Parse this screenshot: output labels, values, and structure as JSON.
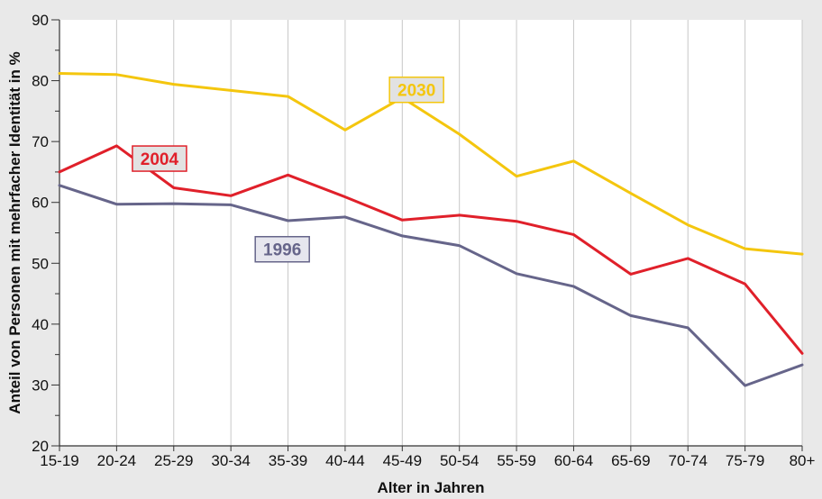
{
  "chart_data": {
    "type": "line",
    "title": "",
    "xlabel": "Alter in Jahren",
    "ylabel": "Anteil von Personen mit mehrfacher Identität in %",
    "categories": [
      "15-19",
      "20-24",
      "25-29",
      "30-34",
      "35-39",
      "40-44",
      "45-49",
      "50-54",
      "55-59",
      "60-64",
      "65-69",
      "70-74",
      "75-79",
      "80+"
    ],
    "ylim": [
      20,
      90
    ],
    "yticks": [
      20,
      30,
      40,
      50,
      60,
      70,
      80,
      90
    ],
    "grid": "vertical",
    "series": [
      {
        "name": "2030",
        "color": "#f4c60e",
        "label_bg": "#e2e2e2",
        "values": [
          81.2,
          81.0,
          79.4,
          78.4,
          77.4,
          71.9,
          77.2,
          71.2,
          64.3,
          66.8,
          61.5,
          56.3,
          52.4,
          51.5
        ]
      },
      {
        "name": "2004",
        "color": "#e0202a",
        "label_bg": "#e2e2e2",
        "values": [
          65.0,
          69.3,
          62.4,
          61.1,
          64.5,
          60.9,
          57.1,
          57.9,
          56.9,
          54.7,
          48.2,
          50.8,
          46.6,
          35.2
        ]
      },
      {
        "name": "1996",
        "color": "#66658a",
        "label_bg": "#e6e6ee",
        "values": [
          62.8,
          59.7,
          59.8,
          59.6,
          57.0,
          57.6,
          54.5,
          52.9,
          48.3,
          46.2,
          41.4,
          39.4,
          29.9,
          33.3
        ]
      }
    ]
  }
}
